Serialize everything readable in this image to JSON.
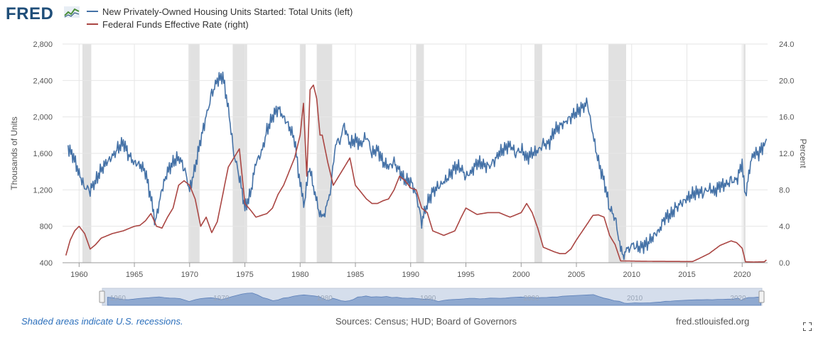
{
  "header": {
    "logo_text": "FRED",
    "legend": [
      {
        "label": "New Privately-Owned Housing Units Started: Total Units (left)",
        "color": "#4572a7"
      },
      {
        "label": "Federal Funds Effective Rate (right)",
        "color": "#aa4643"
      }
    ]
  },
  "footer": {
    "recession_note": "Shaded areas indicate U.S. recessions.",
    "sources": "Sources: Census; HUD; Board of Governors",
    "site": "fred.stlouisfed.org"
  },
  "icons": {
    "expand": "expand-icon",
    "logo_graph": "line-graph-icon"
  },
  "chart_data": {
    "type": "line",
    "ylabel_left": "Thousands of Units",
    "ylabel_right": "Percent",
    "xlim": [
      1958.5,
      2022.3
    ],
    "ylim_left": [
      400,
      2800
    ],
    "ylim_right": [
      0,
      24
    ],
    "x_ticks": [
      1960,
      1965,
      1970,
      1975,
      1980,
      1985,
      1990,
      1995,
      2000,
      2005,
      2010,
      2015,
      2020
    ],
    "y_ticks_left": [
      "400",
      "800",
      "1,200",
      "1,600",
      "2,000",
      "2,400",
      "2,800"
    ],
    "y_ticks_right": [
      "0.0",
      "4.0",
      "8.0",
      "12.0",
      "16.0",
      "20.0",
      "24.0"
    ],
    "grid": true,
    "legend_position": "top-left",
    "recessions": [
      [
        1960.3,
        1961.1
      ],
      [
        1969.9,
        1970.9
      ],
      [
        1973.9,
        1975.2
      ],
      [
        1980.0,
        1980.5
      ],
      [
        1981.5,
        1982.9
      ],
      [
        1990.5,
        1991.2
      ],
      [
        2001.2,
        2001.9
      ],
      [
        2007.9,
        2009.5
      ],
      [
        2020.1,
        2020.3
      ]
    ],
    "navigator_labels": [
      "1960",
      "1970",
      "1980",
      "1990",
      "2000",
      "2010",
      "2020"
    ],
    "series": [
      {
        "name": "New Privately-Owned Housing Units Started: Total Units (left)",
        "axis": "left",
        "color": "#4572a7",
        "x": [
          1959.0,
          1959.5,
          1960.0,
          1960.5,
          1961.0,
          1961.5,
          1962.0,
          1962.5,
          1963.0,
          1963.5,
          1964.0,
          1964.5,
          1965.0,
          1965.5,
          1966.0,
          1966.5,
          1966.9,
          1967.5,
          1968.0,
          1968.5,
          1969.0,
          1969.5,
          1970.0,
          1970.5,
          1971.0,
          1971.5,
          1972.0,
          1972.5,
          1973.0,
          1973.5,
          1974.0,
          1974.5,
          1975.0,
          1975.5,
          1976.0,
          1976.5,
          1977.0,
          1977.5,
          1978.0,
          1978.5,
          1979.0,
          1979.5,
          1980.0,
          1980.4,
          1980.8,
          1981.2,
          1981.6,
          1982.0,
          1982.4,
          1982.8,
          1983.2,
          1983.6,
          1984.0,
          1984.5,
          1985.0,
          1985.5,
          1986.0,
          1986.5,
          1987.0,
          1987.5,
          1988.0,
          1988.5,
          1989.0,
          1989.5,
          1990.0,
          1990.5,
          1991.0,
          1991.5,
          1992.0,
          1992.5,
          1993.0,
          1993.5,
          1994.0,
          1994.5,
          1995.0,
          1995.5,
          1996.0,
          1996.5,
          1997.0,
          1997.5,
          1998.0,
          1998.5,
          1999.0,
          1999.5,
          2000.0,
          2000.5,
          2001.0,
          2001.5,
          2002.0,
          2002.5,
          2003.0,
          2003.5,
          2004.0,
          2004.5,
          2005.0,
          2005.5,
          2006.0,
          2006.5,
          2007.0,
          2007.5,
          2008.0,
          2008.5,
          2009.0,
          2009.3,
          2009.7,
          2010.0,
          2010.5,
          2011.0,
          2011.5,
          2012.0,
          2012.5,
          2013.0,
          2013.5,
          2014.0,
          2014.5,
          2015.0,
          2015.5,
          2016.0,
          2016.5,
          2017.0,
          2017.5,
          2018.0,
          2018.5,
          2019.0,
          2019.5,
          2020.0,
          2020.3,
          2020.6,
          2021.0,
          2021.5,
          2022.0,
          2022.2
        ],
        "y": [
          1660,
          1560,
          1380,
          1230,
          1200,
          1300,
          1420,
          1500,
          1560,
          1650,
          1720,
          1580,
          1500,
          1480,
          1400,
          1100,
          850,
          1200,
          1400,
          1500,
          1560,
          1450,
          1200,
          1450,
          1750,
          2000,
          2250,
          2400,
          2450,
          2100,
          1600,
          1350,
          1000,
          1150,
          1500,
          1600,
          1850,
          2000,
          2100,
          2000,
          1900,
          1750,
          1250,
          1050,
          1450,
          1250,
          1000,
          900,
          1000,
          1250,
          1700,
          1750,
          1900,
          1700,
          1750,
          1700,
          1800,
          1600,
          1650,
          1500,
          1450,
          1500,
          1400,
          1300,
          1300,
          1150,
          850,
          1050,
          1180,
          1230,
          1280,
          1350,
          1450,
          1450,
          1350,
          1400,
          1500,
          1480,
          1450,
          1500,
          1600,
          1650,
          1700,
          1600,
          1650,
          1550,
          1600,
          1620,
          1700,
          1700,
          1850,
          1900,
          1950,
          2000,
          2050,
          2100,
          2150,
          1800,
          1500,
          1300,
          1000,
          900,
          550,
          500,
          550,
          600,
          560,
          580,
          620,
          700,
          760,
          900,
          920,
          1000,
          1050,
          1100,
          1150,
          1180,
          1170,
          1220,
          1180,
          1250,
          1250,
          1300,
          1300,
          1500,
          1080,
          1400,
          1600,
          1600,
          1700,
          1760
        ]
      },
      {
        "name": "Federal Funds Effective Rate (right)",
        "axis": "right",
        "color": "#aa4643",
        "x": [
          1958.8,
          1959.2,
          1959.6,
          1960.0,
          1960.5,
          1961.0,
          1961.5,
          1962.0,
          1963.0,
          1964.0,
          1965.0,
          1965.5,
          1966.0,
          1966.5,
          1967.0,
          1967.5,
          1968.0,
          1968.5,
          1969.0,
          1969.5,
          1970.0,
          1970.5,
          1971.0,
          1971.5,
          1972.0,
          1972.5,
          1973.0,
          1973.5,
          1974.0,
          1974.5,
          1975.0,
          1975.5,
          1976.0,
          1977.0,
          1977.5,
          1978.0,
          1978.5,
          1979.0,
          1979.5,
          1980.0,
          1980.3,
          1980.6,
          1980.9,
          1981.2,
          1981.5,
          1981.8,
          1982.0,
          1982.5,
          1983.0,
          1983.5,
          1984.0,
          1984.5,
          1985.0,
          1986.0,
          1986.5,
          1987.0,
          1987.5,
          1988.0,
          1988.5,
          1989.0,
          1989.5,
          1990.0,
          1990.5,
          1991.0,
          1991.5,
          1992.0,
          1993.0,
          1994.0,
          1994.5,
          1995.0,
          1996.0,
          1997.0,
          1998.0,
          1999.0,
          2000.0,
          2000.5,
          2001.0,
          2001.5,
          2002.0,
          2003.0,
          2003.5,
          2004.0,
          2004.5,
          2005.0,
          2006.0,
          2006.5,
          2007.0,
          2007.5,
          2008.0,
          2008.5,
          2009.0,
          2010.0,
          2012.0,
          2015.5,
          2016.0,
          2017.0,
          2018.0,
          2019.0,
          2019.5,
          2020.0,
          2020.3,
          2021.0,
          2022.0,
          2022.2
        ],
        "y": [
          0.8,
          2.5,
          3.5,
          4.0,
          3.2,
          1.5,
          2.0,
          2.7,
          3.2,
          3.5,
          4.0,
          4.1,
          4.6,
          5.4,
          4.0,
          3.8,
          5.0,
          6.0,
          8.5,
          9.0,
          8.5,
          7.0,
          4.0,
          5.0,
          3.3,
          4.5,
          7.5,
          10.5,
          11.5,
          12.5,
          6.5,
          5.8,
          5.0,
          5.4,
          6.0,
          7.5,
          8.5,
          10.0,
          11.5,
          14.0,
          17.5,
          9.5,
          19.0,
          19.5,
          18.0,
          14.0,
          14.0,
          11.0,
          8.5,
          9.5,
          10.5,
          11.5,
          8.5,
          7.0,
          6.5,
          6.5,
          6.8,
          7.0,
          8.0,
          9.5,
          9.0,
          8.2,
          8.0,
          6.0,
          5.5,
          3.5,
          3.0,
          3.5,
          4.8,
          6.0,
          5.3,
          5.5,
          5.5,
          5.0,
          5.5,
          6.5,
          5.5,
          3.8,
          1.7,
          1.2,
          1.0,
          1.0,
          1.5,
          2.5,
          4.3,
          5.2,
          5.25,
          5.0,
          3.0,
          2.0,
          0.2,
          0.18,
          0.15,
          0.13,
          0.4,
          1.0,
          1.9,
          2.4,
          2.2,
          1.6,
          0.1,
          0.08,
          0.1,
          0.3
        ]
      }
    ]
  }
}
